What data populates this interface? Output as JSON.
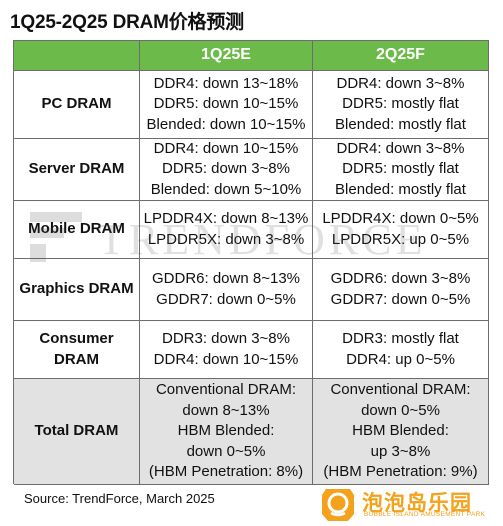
{
  "title": "1Q25-2Q25 DRAM价格预测",
  "header": {
    "col0": "",
    "col1": "1Q25E",
    "col2": "2Q25F"
  },
  "rows": [
    {
      "label": "PC DRAM",
      "q1": [
        "DDR4: down 13~18%",
        "DDR5: down 10~15%",
        "Blended: down 10~15%"
      ],
      "q2": [
        "DDR4: down 3~8%",
        "DDR5: mostly flat",
        "Blended: mostly flat"
      ]
    },
    {
      "label": "Server DRAM",
      "q1": [
        "DDR4: down 10~15%",
        "DDR5: down 3~8%",
        "Blended: down 5~10%"
      ],
      "q2": [
        "DDR4: down 3~8%",
        "DDR5: mostly flat",
        "Blended: mostly flat"
      ]
    },
    {
      "label": "Mobile DRAM",
      "q1": [
        "LPDDR4X: down 8~13%",
        "LPDDR5X: down 3~8%"
      ],
      "q2": [
        "LPDDR4X: down 0~5%",
        "LPDDR5X: up 0~5%"
      ]
    },
    {
      "label": "Graphics DRAM",
      "q1": [
        "GDDR6: down 8~13%",
        "GDDR7: down 0~5%"
      ],
      "q2": [
        "GDDR6: down 3~8%",
        "GDDR7: down 0~5%"
      ]
    },
    {
      "label": "Consumer DRAM",
      "label_lines": [
        "Consumer",
        "DRAM"
      ],
      "q1": [
        "DDR3: down 3~8%",
        "DDR4: down 10~15%"
      ],
      "q2": [
        "DDR3: mostly flat",
        "DDR4: up 0~5%"
      ]
    },
    {
      "label": "Total DRAM",
      "q1": [
        "Conventional DRAM:",
        "down 8~13%",
        "HBM Blended:",
        "down 0~5%",
        "(HBM Penetration: 8%)"
      ],
      "q2": [
        "Conventional DRAM:",
        "down 0~5%",
        "HBM Blended:",
        "up 3~8%",
        "(HBM Penetration: 9%)"
      ]
    }
  ],
  "watermark": "TRENDFORCE",
  "source": "Source: TrendForce, March 2025",
  "brand": {
    "name": "泡泡岛乐园",
    "subtitle": "BUBBLE ISLAND AMUSEMENT PARK"
  },
  "colors": {
    "header_green": "#6cbb4a",
    "total_gray": "#e2e2e2",
    "brand_orange": "#f4a11b"
  }
}
